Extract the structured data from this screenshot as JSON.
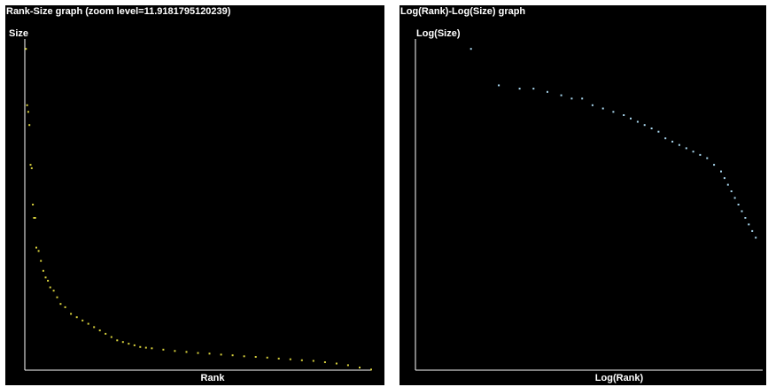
{
  "colors": {
    "background": "#000000",
    "axis": "#ffffff",
    "rank_size_points": "#d9d23c",
    "log_log_points": "#a9d8f0"
  },
  "panels": {
    "rank_size": {
      "title": "Rank-Size graph (zoom level=11.9181795120239)",
      "ylabel": "Size",
      "xlabel": "Rank"
    },
    "log_log": {
      "title": "Log(Rank)-Log(Size) graph",
      "ylabel": "Log(Size)",
      "xlabel": "Log(Rank)"
    }
  },
  "chart_data": [
    {
      "type": "scatter",
      "title": "Rank-Size graph (zoom level=11.9181795120239)",
      "xlabel": "Rank",
      "ylabel": "Size",
      "xlim": [
        0,
        300
      ],
      "ylim": [
        0,
        100
      ],
      "grid": false,
      "x": [
        1,
        2,
        3,
        4,
        5,
        6,
        7,
        8,
        9,
        10,
        12,
        14,
        16,
        18,
        20,
        22,
        25,
        28,
        31,
        35,
        40,
        45,
        50,
        55,
        60,
        65,
        70,
        75,
        80,
        85,
        90,
        95,
        100,
        105,
        110,
        120,
        130,
        140,
        150,
        160,
        170,
        180,
        190,
        200,
        210,
        220,
        230,
        240,
        250,
        260,
        270,
        280,
        290,
        300
      ],
      "y": [
        97,
        80,
        78,
        74,
        62,
        61,
        50,
        46,
        46,
        37,
        36,
        33,
        30,
        28,
        27,
        25,
        24,
        22,
        20,
        19,
        17,
        16,
        15,
        14,
        13,
        12,
        11,
        10,
        9,
        8.5,
        8,
        7.5,
        7,
        6.8,
        6.6,
        6.2,
        5.8,
        5.5,
        5.2,
        5,
        4.7,
        4.5,
        4.2,
        4,
        3.8,
        3.5,
        3.3,
        3,
        2.8,
        2.4,
        2,
        1.5,
        0.8,
        0.2
      ]
    },
    {
      "type": "scatter",
      "title": "Log(Rank)-Log(Size) graph",
      "xlabel": "Log(Rank)",
      "ylabel": "Log(Size)",
      "xlim": [
        0,
        100
      ],
      "ylim": [
        0,
        100
      ],
      "grid": false,
      "x": [
        16,
        24,
        30,
        34,
        38,
        42,
        45,
        48,
        51,
        54,
        57,
        60,
        62,
        64,
        66,
        68,
        70,
        72,
        74,
        76,
        78,
        80,
        82,
        84,
        86,
        88,
        89,
        90,
        91,
        92,
        93,
        94,
        95,
        96,
        97,
        98
      ],
      "y": [
        97,
        86,
        85,
        85,
        84,
        83,
        82,
        82,
        80,
        79,
        78,
        77,
        76,
        75,
        74,
        73,
        72,
        70,
        69,
        68,
        67,
        66,
        65,
        64,
        62,
        60,
        58,
        56,
        54,
        52,
        50,
        48,
        46,
        44,
        42,
        40
      ]
    }
  ]
}
